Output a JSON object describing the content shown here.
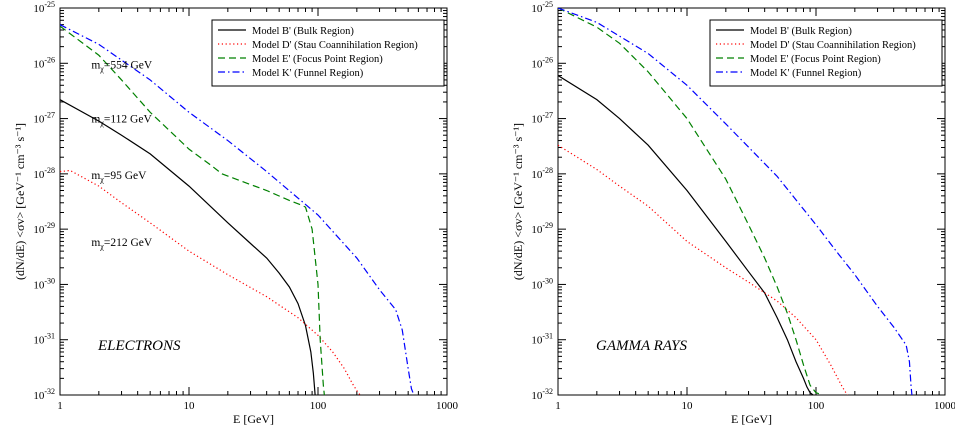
{
  "chart_data": [
    {
      "type": "line",
      "xlabel": "E [GeV]",
      "ylabel": "(dN/dE) <σv> [GeV⁻¹ cm⁻³ s⁻¹]",
      "xscale": "log",
      "yscale": "log",
      "xlim": [
        1,
        1000
      ],
      "ylim": [
        1e-32,
        1e-25
      ],
      "grid": false,
      "legend_position": "top-right",
      "xticks": [
        1,
        10,
        100,
        1000
      ],
      "xtick_labels": [
        "1",
        "10",
        "100",
        "1000"
      ],
      "yticks_exp": [
        -32,
        -31,
        -30,
        -29,
        -28,
        -27,
        -26,
        -25
      ],
      "tick_label_base": "10",
      "annotation_text": "ELECTRONS",
      "mass_labels": [
        {
          "prefix": "m",
          "sub": "χ",
          "text": "=554 GeV",
          "x": 1.75,
          "y": 8e-27
        },
        {
          "prefix": "m",
          "sub": "χ",
          "text": "=112 GeV",
          "x": 1.75,
          "y": 8.5e-28
        },
        {
          "prefix": "m",
          "sub": "χ",
          "text": "=95 GeV",
          "x": 1.75,
          "y": 8e-29
        },
        {
          "prefix": "m",
          "sub": "χ",
          "text": "=212 GeV",
          "x": 1.75,
          "y": 5e-30
        }
      ],
      "series": [
        {
          "name": "Model B' (Bulk Region)",
          "color": "#000000",
          "dash": "solid",
          "x": [
            1,
            2,
            3,
            5,
            10,
            20,
            30,
            40,
            50,
            60,
            70,
            80,
            88,
            92,
            95
          ],
          "y": [
            2.2e-27,
            9e-28,
            5e-28,
            2.3e-28,
            6e-29,
            1.3e-29,
            5.5e-30,
            3e-30,
            1.6e-30,
            9e-31,
            4.5e-31,
            1.8e-31,
            6e-32,
            2.5e-32,
            1e-32
          ]
        },
        {
          "name": "Model D' (Stau Coannihilation Region)",
          "color": "#ff0000",
          "dash": "dotted",
          "x": [
            1,
            1.2,
            2,
            3,
            5,
            10,
            20,
            40,
            70,
            100,
            130,
            160,
            185,
            200,
            212
          ],
          "y": [
            1.1e-28,
            1.15e-28,
            6e-29,
            3e-29,
            1.3e-29,
            4e-30,
            1.5e-30,
            6e-31,
            2.5e-31,
            1.2e-31,
            6e-32,
            3e-32,
            1.6e-32,
            1.2e-32,
            1e-32
          ]
        },
        {
          "name": "Model E' (Focus Point Region)",
          "color": "#008000",
          "dash": "dashed",
          "x": [
            1,
            2,
            3,
            5,
            10,
            15,
            18,
            25,
            40,
            60,
            75,
            80,
            90,
            100,
            104,
            110,
            112
          ],
          "y": [
            4.7e-26,
            1.4e-26,
            5e-27,
            1.3e-27,
            2.8e-28,
            1.4e-28,
            1e-28,
            7.5e-29,
            5e-29,
            3.3e-29,
            2.7e-29,
            2.5e-29,
            1e-29,
            1e-30,
            1e-31,
            1.5e-32,
            1e-32
          ]
        },
        {
          "name": "Model K' (Funnel Region)",
          "color": "#0000ff",
          "dash": "dashdot",
          "x": [
            1,
            2,
            5,
            10,
            20,
            40,
            80,
            100,
            200,
            300,
            400,
            450,
            500,
            530,
            554
          ],
          "y": [
            5e-26,
            2.2e-26,
            5e-27,
            1.3e-27,
            4e-28,
            1.1e-28,
            2.8e-29,
            1.8e-29,
            3e-30,
            8e-31,
            3.5e-31,
            1.5e-31,
            3e-32,
            1.3e-32,
            1e-32
          ]
        }
      ]
    },
    {
      "type": "line",
      "xlabel": "E [GeV]",
      "ylabel": "(dN/dE) <σv> [GeV⁻¹ cm⁻³ s⁻¹]",
      "xscale": "log",
      "yscale": "log",
      "xlim": [
        1,
        1000
      ],
      "ylim": [
        1e-32,
        1e-25
      ],
      "grid": false,
      "legend_position": "top-right",
      "xticks": [
        1,
        10,
        100,
        1000
      ],
      "xtick_labels": [
        "1",
        "10",
        "100",
        "1000"
      ],
      "yticks_exp": [
        -32,
        -31,
        -30,
        -29,
        -28,
        -27,
        -26,
        -25
      ],
      "tick_label_base": "10",
      "annotation_text": "GAMMA RAYS",
      "mass_labels": [],
      "series": [
        {
          "name": "Model B' (Bulk Region)",
          "color": "#000000",
          "dash": "solid",
          "x": [
            1,
            2,
            3,
            5,
            10,
            20,
            30,
            40,
            50,
            60,
            70,
            80,
            85,
            90,
            95
          ],
          "y": [
            6e-27,
            2.2e-27,
            1e-27,
            3.3e-28,
            5e-29,
            6e-30,
            1.7e-30,
            7e-31,
            2.5e-31,
            1e-31,
            4e-32,
            2e-32,
            1.4e-32,
            1.1e-32,
            1e-32
          ]
        },
        {
          "name": "Model D' (Stau Coannihilation Region)",
          "color": "#ff0000",
          "dash": "dotted",
          "x": [
            1,
            2,
            3,
            5,
            10,
            20,
            30,
            50,
            70,
            100,
            130,
            160,
            175
          ],
          "y": [
            3.3e-28,
            1.2e-28,
            6e-29,
            2.6e-29,
            6e-30,
            2e-30,
            1.1e-30,
            5e-31,
            2.5e-31,
            1e-31,
            3.5e-32,
            1.4e-32,
            1e-32
          ]
        },
        {
          "name": "Model E' (Focus Point Region)",
          "color": "#008000",
          "dash": "dashed",
          "x": [
            1,
            2,
            3,
            5,
            10,
            20,
            30,
            40,
            50,
            60,
            70,
            80,
            90,
            100,
            112
          ],
          "y": [
            1e-25,
            4.5e-26,
            2.3e-26,
            7e-27,
            1e-27,
            8e-29,
            1.2e-29,
            3e-30,
            9e-31,
            3e-31,
            1e-31,
            3.5e-32,
            1.5e-32,
            1.1e-32,
            1e-32
          ]
        },
        {
          "name": "Model K' (Funnel Region)",
          "color": "#0000ff",
          "dash": "dashdot",
          "x": [
            1,
            2,
            5,
            10,
            20,
            50,
            100,
            150,
            200,
            300,
            400,
            500,
            530,
            545,
            554
          ],
          "y": [
            1e-25,
            5.5e-26,
            1.5e-26,
            4e-27,
            8e-28,
            9e-29,
            1.2e-29,
            3.5e-30,
            1.5e-30,
            4e-31,
            1.7e-31,
            8e-32,
            4e-32,
            1.5e-32,
            1e-32
          ]
        }
      ]
    }
  ]
}
